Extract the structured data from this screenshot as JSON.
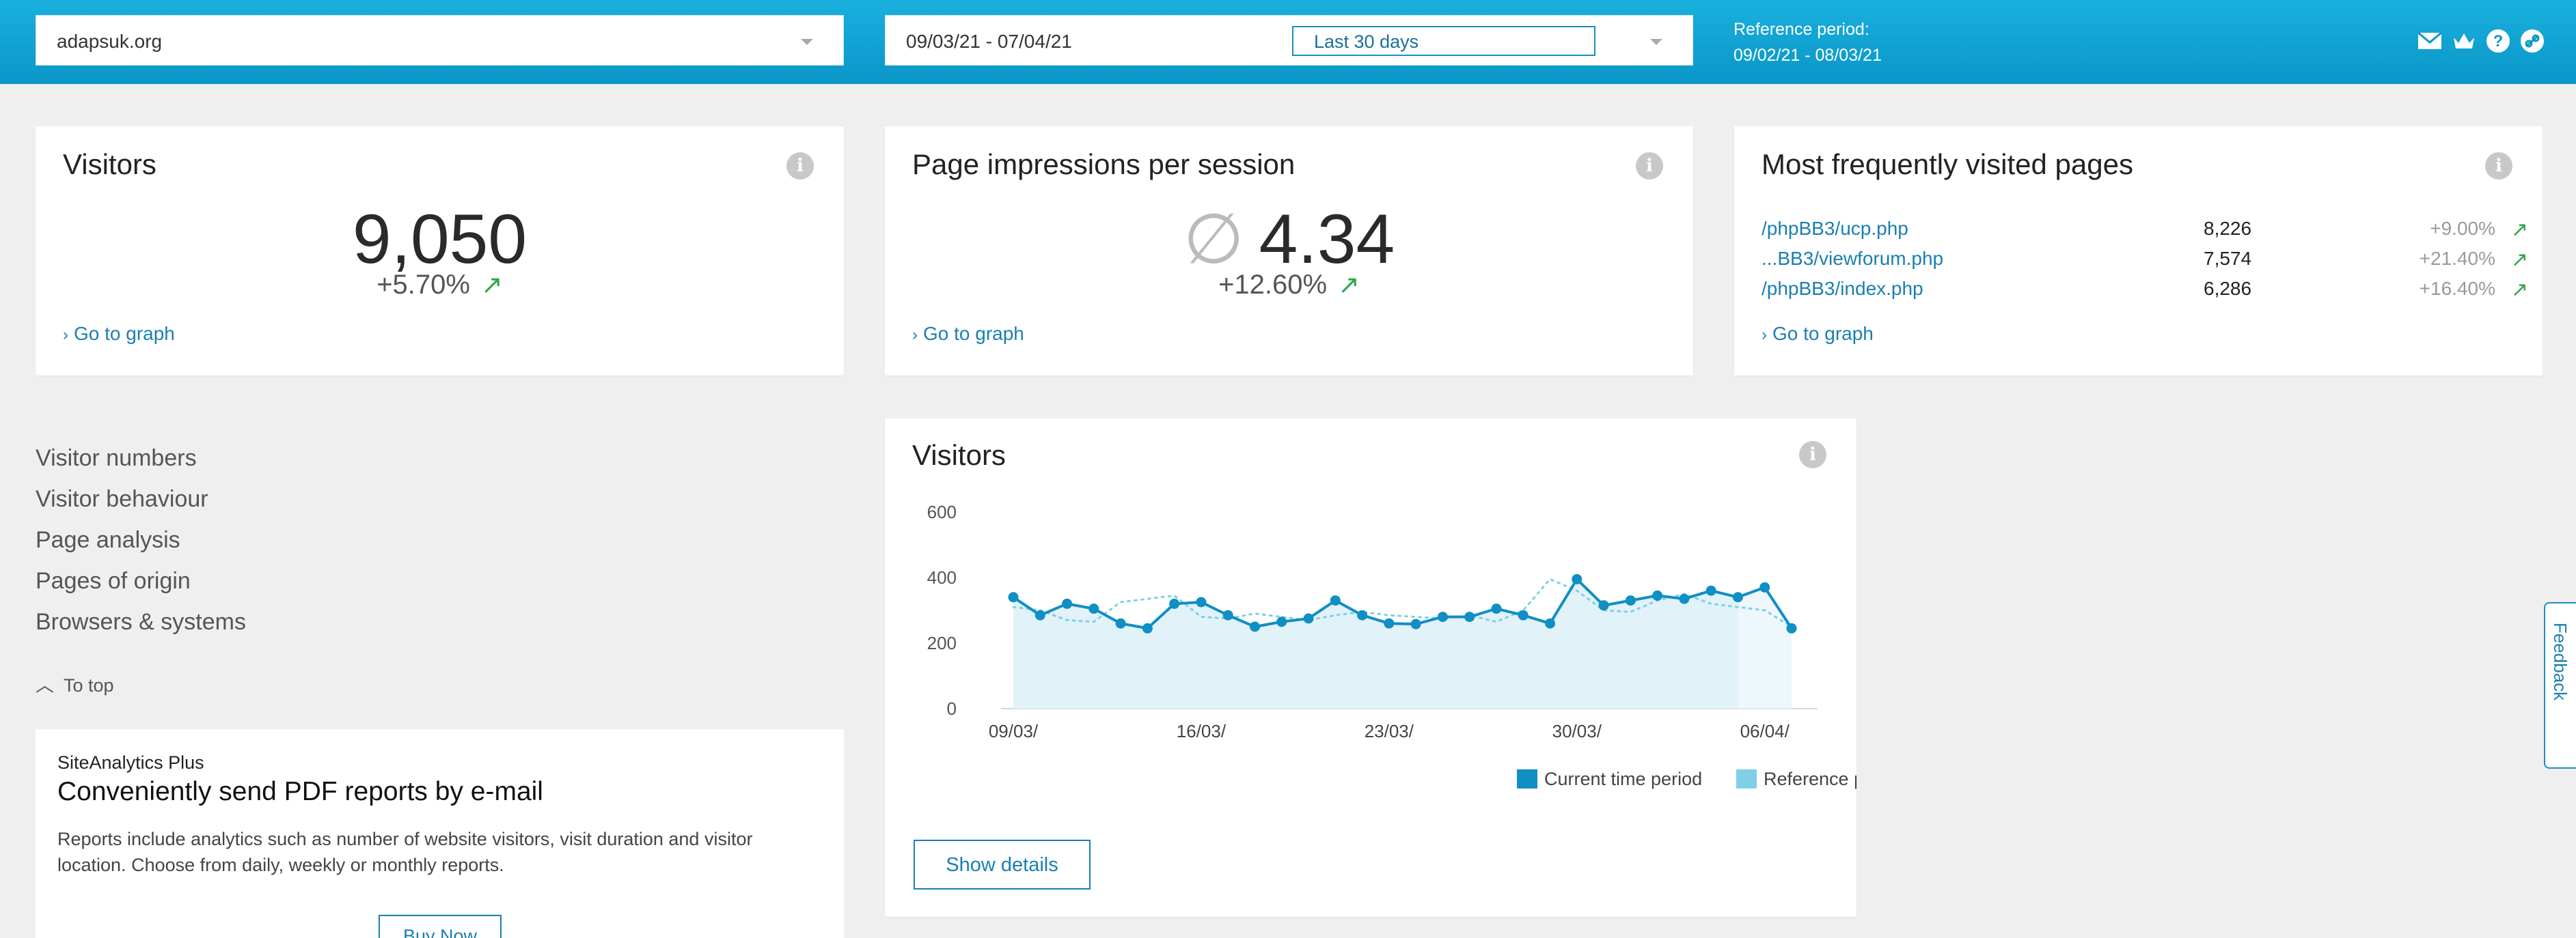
{
  "header": {
    "site": "adapsuk.org",
    "date_range": "09/03/21 - 07/04/21",
    "range_preset": "Last 30 days",
    "reference_label": "Reference period:",
    "reference_range": "09/02/21 - 08/03/21",
    "icons": [
      "mail-icon",
      "crown-icon",
      "help-icon",
      "link-icon"
    ]
  },
  "cards": {
    "visitors": {
      "title": "Visitors",
      "value": "9,050",
      "change": "+5.70%",
      "goto": "Go to graph"
    },
    "impressions": {
      "title": "Page impressions per session",
      "avg_symbol": "∅",
      "value": "4.34",
      "change": "+12.60%",
      "goto": "Go to graph"
    },
    "pages": {
      "title": "Most frequently visited pages",
      "rows": [
        {
          "path": "/phpBB3/ucp.php",
          "count": "8,226",
          "pct": "+9.00%"
        },
        {
          "path": "...BB3/viewforum.php",
          "count": "7,574",
          "pct": "+21.40%"
        },
        {
          "path": "/phpBB3/index.php",
          "count": "6,286",
          "pct": "+16.40%"
        }
      ],
      "goto": "Go to graph"
    }
  },
  "nav": {
    "items": [
      "Visitor numbers",
      "Visitor behaviour",
      "Page analysis",
      "Pages of origin",
      "Browsers & systems"
    ],
    "to_top": "To top"
  },
  "promo": {
    "kicker": "SiteAnalytics Plus",
    "title": "Conveniently send PDF reports by e-mail",
    "body": "Reports include analytics such as number of website visitors, visit duration and visitor location. Choose from daily, weekly or monthly reports.",
    "button": "Buy Now"
  },
  "chart": {
    "show_details": "Show details"
  },
  "feedback": "Feedback",
  "colors": {
    "accent": "#1a8fc0",
    "current": "#0f8fc4",
    "reference": "#7fd0e6",
    "up": "#2fa64b"
  },
  "chart_data": {
    "type": "line",
    "title": "Visitors",
    "x": [
      "09/03/",
      "10/03/",
      "11/03/",
      "12/03/",
      "13/03/",
      "14/03/",
      "15/03/",
      "16/03/",
      "17/03/",
      "18/03/",
      "19/03/",
      "20/03/",
      "21/03/",
      "22/03/",
      "23/03/",
      "24/03/",
      "25/03/",
      "26/03/",
      "27/03/",
      "28/03/",
      "29/03/",
      "30/03/",
      "31/03/",
      "01/04/",
      "02/04/",
      "03/04/",
      "04/04/",
      "05/04/",
      "06/04/",
      "07/04/"
    ],
    "x_tick_labels": [
      "09/03/",
      "16/03/",
      "23/03/",
      "30/03/",
      "06/04/"
    ],
    "y_ticks": [
      0,
      200,
      400,
      600
    ],
    "ylim": [
      0,
      600
    ],
    "series": [
      {
        "name": "Current time period",
        "values": [
          340,
          285,
          320,
          305,
          260,
          245,
          320,
          325,
          285,
          250,
          265,
          275,
          330,
          285,
          260,
          258,
          280,
          280,
          305,
          285,
          260,
          395,
          315,
          330,
          345,
          335,
          360,
          340,
          370,
          245
        ]
      },
      {
        "name": "Reference period",
        "values": [
          310,
          300,
          270,
          265,
          325,
          335,
          345,
          280,
          275,
          290,
          280,
          270,
          285,
          295,
          285,
          280,
          275,
          285,
          265,
          300,
          395,
          360,
          300,
          295,
          330,
          350,
          320,
          310,
          300,
          250
        ]
      }
    ],
    "legend": [
      "Current time period",
      "Reference period"
    ]
  }
}
